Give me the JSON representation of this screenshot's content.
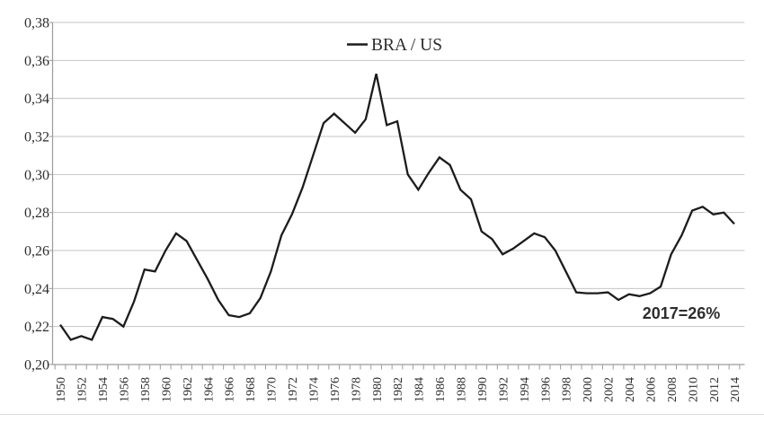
{
  "chart_data": {
    "type": "line",
    "title": "",
    "legend": {
      "label": "BRA / US",
      "position": "top-center",
      "marker": "line-dash"
    },
    "annotation": {
      "text": "2017=26%"
    },
    "grid": "horizontal",
    "x_label_rotation_deg": 90,
    "x": [
      1950,
      1951,
      1952,
      1953,
      1954,
      1955,
      1956,
      1957,
      1958,
      1959,
      1960,
      1961,
      1962,
      1963,
      1964,
      1965,
      1966,
      1967,
      1968,
      1969,
      1970,
      1971,
      1972,
      1973,
      1974,
      1975,
      1976,
      1977,
      1978,
      1979,
      1980,
      1981,
      1982,
      1983,
      1984,
      1985,
      1986,
      1987,
      1988,
      1989,
      1990,
      1991,
      1992,
      1993,
      1994,
      1995,
      1996,
      1997,
      1998,
      1999,
      2000,
      2001,
      2002,
      2003,
      2004,
      2005,
      2006,
      2007,
      2008,
      2009,
      2010,
      2011,
      2012,
      2013,
      2014
    ],
    "series": [
      {
        "name": "BRA / US",
        "values": [
          0.221,
          0.213,
          0.215,
          0.213,
          0.225,
          0.224,
          0.22,
          0.233,
          0.25,
          0.249,
          0.26,
          0.269,
          0.265,
          0.255,
          0.245,
          0.234,
          0.226,
          0.225,
          0.227,
          0.235,
          0.249,
          0.268,
          0.279,
          0.293,
          0.31,
          0.327,
          0.332,
          0.327,
          0.322,
          0.329,
          0.353,
          0.326,
          0.328,
          0.3,
          0.292,
          0.301,
          0.309,
          0.305,
          0.292,
          0.287,
          0.27,
          0.266,
          0.258,
          0.261,
          0.265,
          0.269,
          0.267,
          0.26,
          0.249,
          0.238,
          0.2375,
          0.2375,
          0.238,
          0.234,
          0.237,
          0.236,
          0.2375,
          0.241,
          0.258,
          0.268,
          0.281,
          0.283,
          0.279,
          0.28,
          0.274
        ]
      }
    ],
    "y_axis": {
      "min": 0.2,
      "max": 0.38,
      "step": 0.02,
      "decimal_separator": "comma",
      "tick_labels": [
        "0,38",
        "0,36",
        "0,34",
        "0,32",
        "0,30",
        "0,28",
        "0,26",
        "0,24",
        "0,22",
        "0,20"
      ]
    },
    "x_axis": {
      "labeled_every_years": 2,
      "tick_labels": [
        "1950",
        "1952",
        "1954",
        "1956",
        "1958",
        "1960",
        "1962",
        "1964",
        "1966",
        "1968",
        "1970",
        "1972",
        "1974",
        "1976",
        "1978",
        "1980",
        "1982",
        "1984",
        "1986",
        "1988",
        "1990",
        "1992",
        "1994",
        "1996",
        "1998",
        "2000",
        "2002",
        "2004",
        "2006",
        "2008",
        "2010",
        "2012",
        "2014"
      ]
    },
    "colors": {
      "line": "#1c1c1c",
      "grid": "#c6c6c6",
      "axis": "#9b9b9b",
      "text": "#2d2d2d",
      "annotation_text": "#1a1a1a"
    }
  }
}
